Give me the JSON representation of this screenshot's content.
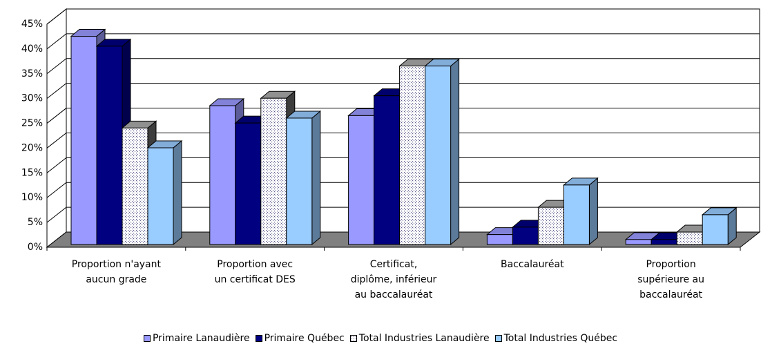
{
  "chart_data": {
    "type": "bar3d",
    "categories": [
      "Proportion n'ayant\naucun grade",
      "Proportion avec\nun certificat DES",
      "Certificat,\ndiplôme, inférieur\nau baccalauréat",
      "Baccalauréat",
      "Proportion\nsupérieure au\nbaccalauréat"
    ],
    "series": [
      {
        "name": "Primaire Lanaudière",
        "color": "#9999ff",
        "values": [
          42,
          28,
          26,
          2,
          1
        ]
      },
      {
        "name": "Primaire Québec",
        "color": "#000080",
        "values": [
          40,
          24.5,
          30,
          3.5,
          1
        ]
      },
      {
        "name": "Total Industries Lanaudière",
        "color": "#ffffff",
        "pattern": "dotted",
        "values": [
          23.5,
          29.5,
          36,
          7.5,
          2.5
        ]
      },
      {
        "name": "Total Industries Québec",
        "color": "#99ccff",
        "values": [
          19.5,
          25.5,
          36,
          12,
          6
        ]
      }
    ],
    "ylim": [
      0,
      45
    ],
    "yticks": [
      {
        "value": 0,
        "label": "0%"
      },
      {
        "value": 5,
        "label": "5%"
      },
      {
        "value": 10,
        "label": "10%"
      },
      {
        "value": 15,
        "label": "15%"
      },
      {
        "value": 20,
        "label": "20%"
      },
      {
        "value": 25,
        "label": "25%"
      },
      {
        "value": 30,
        "label": "30%"
      },
      {
        "value": 35,
        "label": "35%"
      },
      {
        "value": 40,
        "label": "40%"
      },
      {
        "value": 45,
        "label": "45%"
      }
    ],
    "grid": true,
    "legend": "bottom"
  }
}
